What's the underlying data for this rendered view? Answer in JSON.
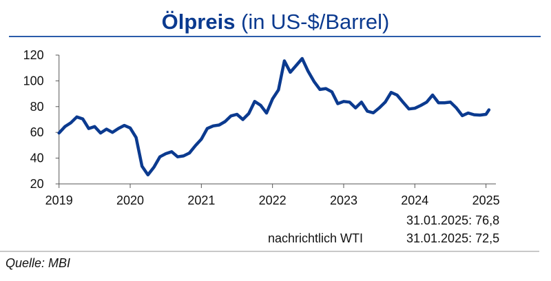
{
  "chart_data": {
    "type": "line",
    "title_bold": "Ölpreis",
    "title_rest": " (in US-$/Barrel)",
    "xlabel": "",
    "ylabel": "",
    "ylim": [
      20,
      120
    ],
    "yticks": [
      "20",
      "40",
      "60",
      "80",
      "100",
      "120"
    ],
    "xticks": [
      "2019",
      "2020",
      "2021",
      "2022",
      "2023",
      "2024",
      "2025"
    ],
    "grid": false,
    "line_color": "#0b3a8f",
    "series": [
      {
        "x_start": "2019-01",
        "frequency": "monthly",
        "values": [
          59.5,
          64.5,
          67.5,
          72,
          70.5,
          63,
          64.5,
          59.5,
          62.5,
          60,
          63,
          65.4,
          63.4,
          56,
          33.7,
          27,
          33,
          41,
          43.5,
          45,
          41,
          41.7,
          44,
          49.7,
          54.7,
          63,
          65,
          65.7,
          68.4,
          72.8,
          74,
          70,
          74.6,
          84,
          81,
          75,
          86,
          93,
          115.5,
          106.7,
          112,
          117.3,
          107.5,
          99.5,
          93.3,
          94,
          91.5,
          82.3,
          84,
          83.5,
          79,
          83.5,
          76.4,
          75.2,
          79,
          83.5,
          91,
          89,
          83.5,
          78.2,
          78.7,
          80.9,
          83.5,
          89,
          83,
          83,
          83.5,
          79,
          73,
          75,
          73.7,
          73.4,
          74,
          77.5
        ]
      }
    ],
    "annotations": {
      "brent": "31.01.2025: 76,8",
      "wti_label": "nachrichtlich WTI",
      "wti": "31.01.2025: 72,5"
    }
  },
  "source": "Quelle: MBI"
}
